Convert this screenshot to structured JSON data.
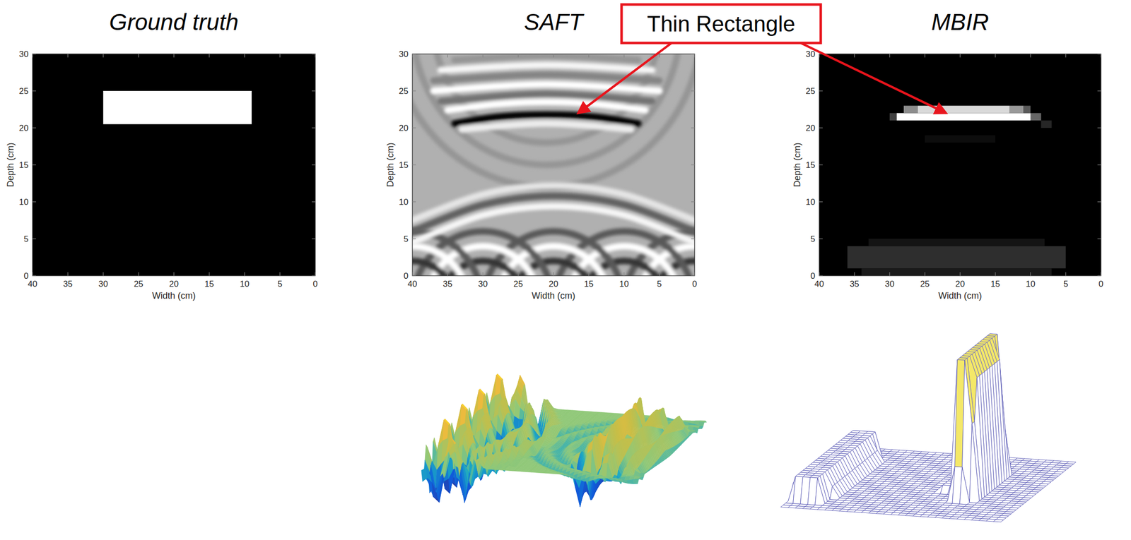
{
  "chart_data": [
    {
      "type": "heatmap",
      "title": "Ground truth",
      "x_label": "Width (cm)",
      "y_label": "Depth (cm)",
      "xlim": [
        40,
        0
      ],
      "ylim": [
        0,
        30
      ],
      "xticks": [
        40,
        35,
        30,
        25,
        20,
        15,
        10,
        5,
        0
      ],
      "yticks": [
        0,
        5,
        10,
        15,
        20,
        25,
        30
      ],
      "clim": [
        0,
        1
      ],
      "background": 0,
      "regions": [
        {
          "x": [
            30,
            9
          ],
          "y": [
            20.5,
            25
          ],
          "value": 1
        }
      ]
    },
    {
      "type": "surface",
      "title": "SAFT",
      "x_label": "Width (cm)",
      "y_label": "Depth (cm)",
      "xlim": [
        40,
        0
      ],
      "ylim": [
        0,
        30
      ],
      "xticks": [
        40,
        35,
        30,
        25,
        20,
        15,
        10,
        5,
        0
      ],
      "yticks": [
        0,
        5,
        10,
        15,
        20,
        25,
        30
      ],
      "clim": [
        -1,
        0.45
      ],
      "background": 0,
      "bands": [
        {
          "points": [
            [
              40,
              4.5
            ],
            [
              30,
              8.2
            ],
            [
              20,
              9.4
            ],
            [
              10,
              8.2
            ],
            [
              0,
              4.5
            ]
          ],
          "value": 0.4
        },
        {
          "points": [
            [
              40,
              6
            ],
            [
              30,
              9.6
            ],
            [
              20,
              10.8
            ],
            [
              10,
              9.6
            ],
            [
              0,
              6
            ]
          ],
          "value": -0.45
        },
        {
          "points": [
            [
              40,
              7.5
            ],
            [
              30,
              11
            ],
            [
              20,
              12.2
            ],
            [
              10,
              11
            ],
            [
              0,
              7.5
            ]
          ],
          "value": 0.3
        },
        {
          "points": [
            [
              34,
              29.2
            ],
            [
              21,
              29.8
            ],
            [
              8,
              29.2
            ]
          ],
          "value": -0.15
        },
        {
          "points": [
            [
              36,
              27.8
            ],
            [
              21,
              28.5
            ],
            [
              6,
              27.8
            ]
          ],
          "value": 0.4
        },
        {
          "points": [
            [
              37,
              26.4
            ],
            [
              21,
              27.2
            ],
            [
              5,
              26.4
            ]
          ],
          "value": -0.25
        },
        {
          "points": [
            [
              37,
              25
            ],
            [
              21,
              25.9
            ],
            [
              5,
              25
            ]
          ],
          "value": 0.6
        },
        {
          "points": [
            [
              36,
              23.6
            ],
            [
              21,
              24.6
            ],
            [
              6,
              23.6
            ]
          ],
          "value": -0.35
        },
        {
          "points": [
            [
              35,
              22.4
            ],
            [
              28,
              23.2
            ],
            [
              21,
              23.5
            ],
            [
              14,
              23.2
            ],
            [
              7,
              22.4
            ]
          ],
          "value": 0.9
        },
        {
          "points": [
            [
              33,
              19.8
            ],
            [
              21,
              20.6
            ],
            [
              9,
              19.8
            ]
          ],
          "value": 0.35
        },
        {
          "points": [
            [
              34,
              20.6
            ],
            [
              28,
              21.5
            ],
            [
              21,
              21.8
            ],
            [
              14,
              21.5
            ],
            [
              8,
              20.6
            ]
          ],
          "value": -1
        }
      ],
      "arcs": [
        {
          "x": 21,
          "y": 34,
          "r": 16,
          "value": -0.15
        },
        {
          "x": 21,
          "y": 34,
          "r": 19,
          "value": -0.15
        },
        {
          "x": 21,
          "y": 34,
          "r": 22,
          "value": -0.15
        },
        {
          "x": 0,
          "y": -4,
          "r": 6,
          "value": -0.7
        },
        {
          "x": 0,
          "y": -4,
          "r": 8,
          "value": 0.6
        },
        {
          "x": 0,
          "y": -4,
          "r": 10,
          "value": -0.5
        },
        {
          "x": 10,
          "y": -4,
          "r": 6,
          "value": -0.7
        },
        {
          "x": 10,
          "y": -4,
          "r": 8,
          "value": 0.6
        },
        {
          "x": 10,
          "y": -4,
          "r": 10,
          "value": -0.5
        },
        {
          "x": 20,
          "y": -4,
          "r": 6,
          "value": -0.7
        },
        {
          "x": 20,
          "y": -4,
          "r": 8,
          "value": 0.6
        },
        {
          "x": 20,
          "y": -4,
          "r": 10,
          "value": -0.5
        },
        {
          "x": 30,
          "y": -4,
          "r": 6,
          "value": -0.7
        },
        {
          "x": 30,
          "y": -4,
          "r": 8,
          "value": 0.6
        },
        {
          "x": 30,
          "y": -4,
          "r": 10,
          "value": -0.5
        },
        {
          "x": 40,
          "y": -4,
          "r": 6,
          "value": -0.7
        },
        {
          "x": 40,
          "y": -4,
          "r": 8,
          "value": 0.6
        },
        {
          "x": 40,
          "y": -4,
          "r": 10,
          "value": -0.5
        }
      ],
      "annotation_point": [
        16.5,
        22
      ]
    },
    {
      "type": "surface",
      "title": "MBIR",
      "x_label": "Width (cm)",
      "y_label": "Depth (cm)",
      "xlim": [
        40,
        0
      ],
      "ylim": [
        0,
        30
      ],
      "xticks": [
        40,
        35,
        30,
        25,
        20,
        15,
        10,
        5,
        0
      ],
      "yticks": [
        0,
        5,
        10,
        15,
        20,
        25,
        30
      ],
      "clim": [
        0,
        1
      ],
      "background": 0,
      "regions": [
        {
          "x": [
            36,
            5
          ],
          "y": [
            1,
            4
          ],
          "value": 0.18
        },
        {
          "x": [
            34,
            7
          ],
          "y": [
            0,
            1
          ],
          "value": 0.1
        },
        {
          "x": [
            33,
            8
          ],
          "y": [
            4,
            5
          ],
          "value": 0.08
        },
        {
          "x": [
            25,
            15
          ],
          "y": [
            18,
            19
          ],
          "value": 0.05
        },
        {
          "x": [
            8.5,
            7
          ],
          "y": [
            20,
            21
          ],
          "value": 0.15
        },
        {
          "x": [
            30,
            29
          ],
          "y": [
            21,
            22
          ],
          "value": 0.25
        },
        {
          "x": [
            10,
            8.5
          ],
          "y": [
            21,
            22
          ],
          "value": 0.4
        },
        {
          "x": [
            29,
            10
          ],
          "y": [
            21,
            22
          ],
          "value": 1
        },
        {
          "x": [
            28,
            26
          ],
          "y": [
            22,
            23
          ],
          "value": 0.55
        },
        {
          "x": [
            26,
            13
          ],
          "y": [
            22,
            23
          ],
          "value": 0.85
        },
        {
          "x": [
            13,
            11
          ],
          "y": [
            22,
            23
          ],
          "value": 0.6
        },
        {
          "x": [
            11,
            10
          ],
          "y": [
            22,
            23
          ],
          "value": 0.35
        }
      ],
      "annotation_point": [
        22,
        22
      ]
    }
  ],
  "annotation": "Thin Rectangle"
}
